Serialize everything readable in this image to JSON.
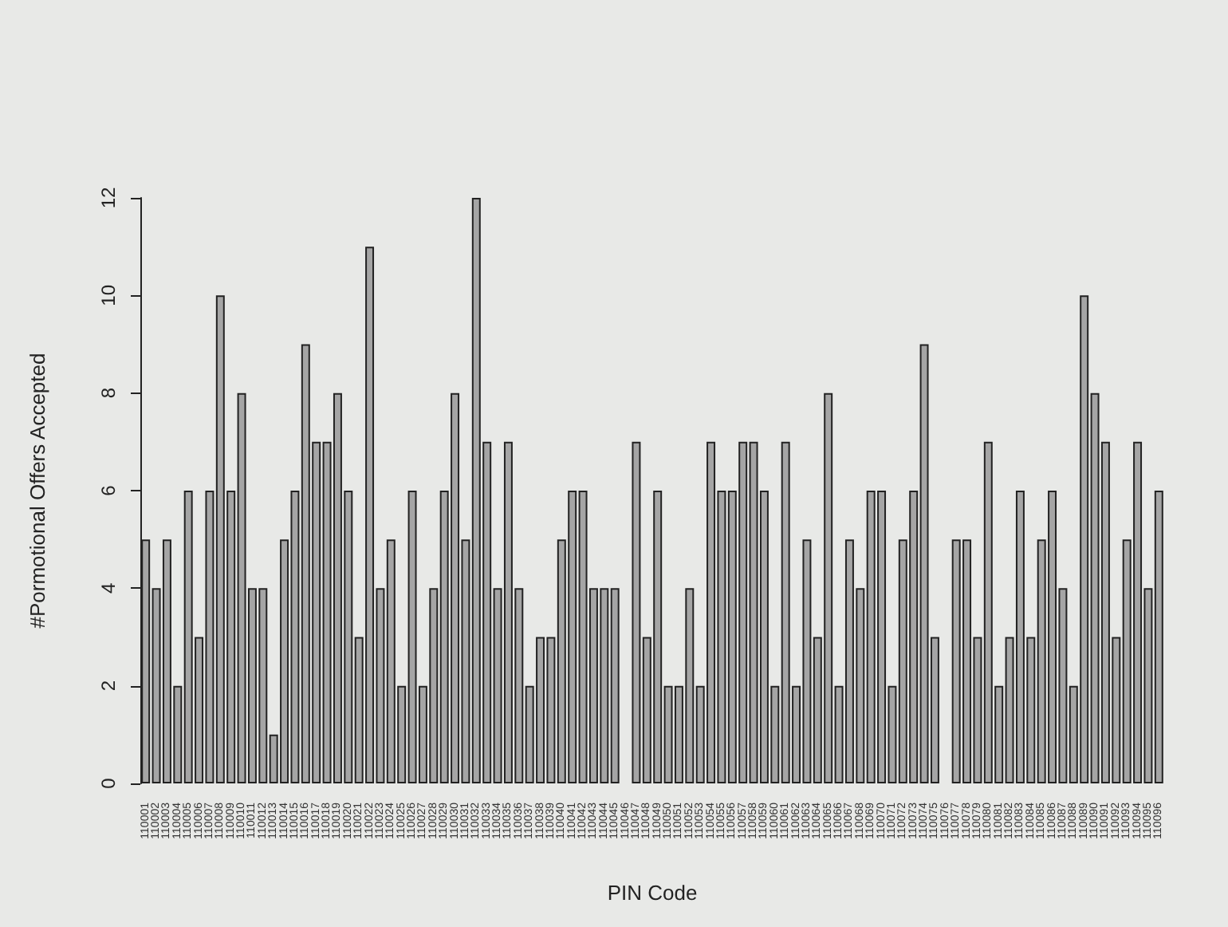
{
  "chart_data": {
    "type": "bar",
    "xlabel": "PIN Code",
    "ylabel": "#Pormotional Offers Accepted",
    "categories": [
      "110001",
      "110002",
      "110003",
      "110004",
      "110005",
      "110006",
      "110007",
      "110008",
      "110009",
      "110010",
      "110011",
      "110012",
      "110013",
      "110014",
      "110015",
      "110016",
      "110017",
      "110018",
      "110019",
      "110020",
      "110021",
      "110022",
      "110023",
      "110024",
      "110025",
      "110026",
      "110027",
      "110028",
      "110029",
      "110030",
      "110031",
      "110032",
      "110033",
      "110034",
      "110035",
      "110036",
      "110037",
      "110038",
      "110039",
      "110040",
      "110041",
      "110042",
      "110043",
      "110044",
      "110045",
      "110046",
      "110047",
      "110048",
      "110049",
      "110050",
      "110051",
      "110052",
      "110053",
      "110054",
      "110055",
      "110056",
      "110057",
      "110058",
      "110059",
      "110060",
      "110061",
      "110062",
      "110063",
      "110064",
      "110065",
      "110066",
      "110067",
      "110068",
      "110069",
      "110070",
      "110071",
      "110072",
      "110073",
      "110074",
      "110075",
      "110076",
      "110077",
      "110078",
      "110079",
      "110080",
      "110081",
      "110082",
      "110083",
      "110084",
      "110085",
      "110086",
      "110087",
      "110088",
      "110089",
      "110090",
      "110091",
      "110092",
      "110093",
      "110094",
      "110095",
      "110096"
    ],
    "values": [
      5,
      4,
      5,
      2,
      6,
      3,
      6,
      10,
      6,
      8,
      4,
      4,
      1,
      5,
      6,
      9,
      7,
      7,
      8,
      6,
      3,
      11,
      4,
      5,
      2,
      6,
      2,
      4,
      6,
      8,
      5,
      12,
      7,
      4,
      7,
      4,
      2,
      3,
      3,
      5,
      6,
      6,
      4,
      4,
      4,
      0,
      7,
      3,
      6,
      2,
      2,
      4,
      2,
      7,
      6,
      6,
      7,
      7,
      6,
      2,
      7,
      2,
      5,
      3,
      8,
      2,
      5,
      4,
      6,
      6,
      2,
      5,
      6,
      9,
      3,
      0,
      5,
      5,
      3,
      7,
      2,
      3,
      6,
      3,
      5,
      6,
      4,
      2,
      10,
      8,
      7,
      3,
      5,
      7,
      4,
      6
    ],
    "color": "#a5a5a5",
    "ylim": [
      0,
      12
    ],
    "yticks": [
      0,
      2,
      4,
      6,
      8,
      10,
      12
    ],
    "grid": false
  }
}
